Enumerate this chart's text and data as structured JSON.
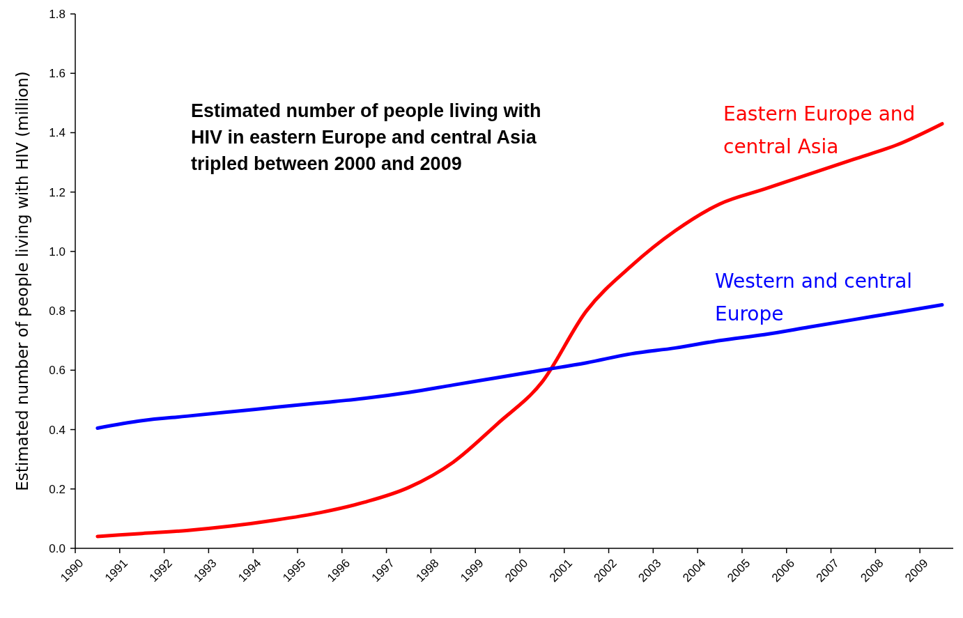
{
  "chart_data": {
    "type": "line",
    "ylabel": "Estimated number of people living with HIV (million)",
    "annotations": [
      "Estimated number of people living with HIV in eastern Europe and central Asia tripled between 2000 and 2009"
    ],
    "x": [
      1990.5,
      1991.5,
      1992.5,
      1993.5,
      1994.5,
      1995.5,
      1996.5,
      1997.5,
      1998.5,
      1999.5,
      2000.5,
      2001.5,
      2002.5,
      2003.5,
      2004.5,
      2005.5,
      2006.5,
      2007.5,
      2008.5,
      2009.5
    ],
    "series": [
      {
        "name": "Eastern Europe and central Asia",
        "color": "#ff0000",
        "values": [
          0.04,
          0.05,
          0.06,
          0.075,
          0.095,
          0.12,
          0.155,
          0.205,
          0.29,
          0.42,
          0.56,
          0.8,
          0.95,
          1.07,
          1.16,
          1.21,
          1.26,
          1.31,
          1.36,
          1.43
        ]
      },
      {
        "name": "Western and central Europe",
        "color": "#0000ff",
        "values": [
          0.405,
          0.43,
          0.445,
          0.46,
          0.475,
          0.49,
          0.505,
          0.525,
          0.55,
          0.575,
          0.6,
          0.625,
          0.655,
          0.675,
          0.7,
          0.72,
          0.745,
          0.77,
          0.795,
          0.82
        ]
      }
    ],
    "xlim": [
      1990,
      2009.75
    ],
    "xticks": [
      1990,
      1991,
      1992,
      1993,
      1994,
      1995,
      1996,
      1997,
      1998,
      1999,
      2000,
      2001,
      2002,
      2003,
      2004,
      2005,
      2006,
      2007,
      2008,
      2009
    ],
    "ylim": [
      0,
      1.8
    ],
    "yticks": [
      {
        "value": 0,
        "label": "0.0"
      },
      0.2,
      0.4,
      0.6,
      0.8,
      {
        "value": 1,
        "label": "1.0"
      },
      1.2,
      1.4,
      1.6,
      1.8
    ],
    "legend": false,
    "grid": false,
    "marker": "none",
    "line_style": "solid"
  }
}
